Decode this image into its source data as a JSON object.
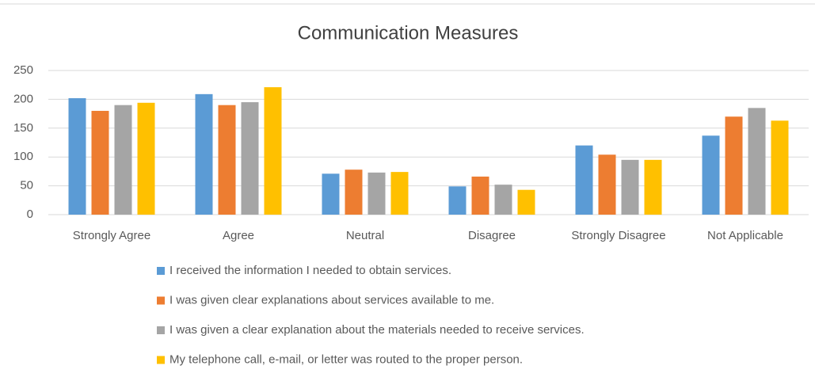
{
  "chart_data": {
    "type": "bar",
    "title": "Communication Measures",
    "categories": [
      "Strongly Agree",
      "Agree",
      "Neutral",
      "Disagree",
      "Strongly Disagree",
      "Not Applicable"
    ],
    "series": [
      {
        "name": "I received the information I needed to obtain services.",
        "color": "#5b9bd5",
        "values": [
          202,
          209,
          71,
          49,
          120,
          137
        ]
      },
      {
        "name": "I was given clear explanations about services available to me.",
        "color": "#ed7d31",
        "values": [
          180,
          190,
          78,
          66,
          104,
          170
        ]
      },
      {
        "name": "I was given a clear explanation about the materials needed to receive services.",
        "color": "#a5a5a5",
        "values": [
          190,
          195,
          73,
          52,
          95,
          185
        ]
      },
      {
        "name": "My telephone call, e-mail, or letter was routed to the proper person.",
        "color": "#ffc000",
        "values": [
          194,
          221,
          74,
          43,
          95,
          163
        ]
      }
    ],
    "ylim": [
      0,
      250
    ],
    "yticks": [
      0,
      50,
      100,
      150,
      200,
      250
    ],
    "grid": true,
    "legend": "bottom"
  }
}
